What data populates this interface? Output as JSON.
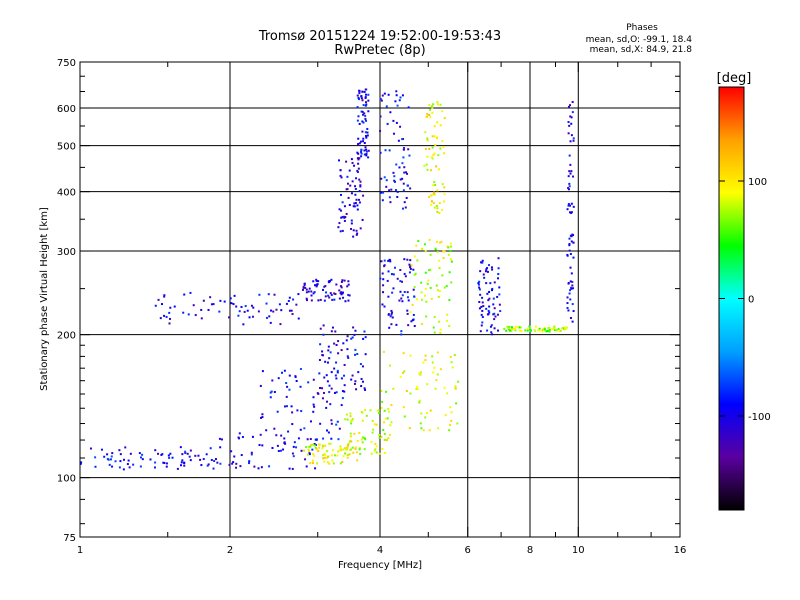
{
  "chart_data": {
    "type": "scatter",
    "title": "Tromsø 20151224 19:52:00-19:53:43",
    "subtitle": "RwPretec (8p)",
    "xlabel": "Frequency [MHz]",
    "ylabel": "Stationary phase Virtual Height [km]",
    "x_scale": "log",
    "y_scale": "log",
    "xlim": [
      1,
      16
    ],
    "ylim": [
      75,
      750
    ],
    "x_ticks": [
      "1",
      "2",
      "4",
      "6",
      "8",
      "10",
      "16"
    ],
    "y_ticks": [
      "75",
      "100",
      "200",
      "300",
      "400",
      "500",
      "600",
      "750"
    ],
    "grid": true,
    "legend": {
      "title": "Phases",
      "line1": "mean, sd,O: -99.1, 18.4",
      "line2": "mean, sd,X:  84.9, 21.8"
    },
    "colorbar": {
      "label": "[deg]",
      "range": [
        -180,
        180
      ],
      "ticks": [
        "100",
        "0",
        "-100"
      ],
      "colors": [
        "#000000",
        "#5a00a0",
        "#0000ff",
        "#00a0ff",
        "#00ffff",
        "#00ff00",
        "#ffff00",
        "#ffa000",
        "#ff0000"
      ]
    },
    "clusters": [
      {
        "x": [
          1.0,
          1.8
        ],
        "y": [
          104,
          116
        ],
        "phase": -95
      },
      {
        "x": [
          1.8,
          3.0
        ],
        "y": [
          104,
          125
        ],
        "phase": -100
      },
      {
        "x": [
          2.3,
          3.4
        ],
        "y": [
          120,
          170
        ],
        "phase": -95
      },
      {
        "x": [
          3.0,
          3.8
        ],
        "y": [
          150,
          215
        ],
        "phase": -100
      },
      {
        "x": [
          1.4,
          2.8
        ],
        "y": [
          210,
          245
        ],
        "phase": -100
      },
      {
        "x": [
          2.8,
          3.5
        ],
        "y": [
          235,
          262
        ],
        "phase": -105
      },
      {
        "x": [
          2.8,
          3.6
        ],
        "y": [
          107,
          118
        ],
        "phase": 90
      },
      {
        "x": [
          3.4,
          4.2
        ],
        "y": [
          112,
          140
        ],
        "phase": 85
      },
      {
        "x": [
          4.0,
          5.8
        ],
        "y": [
          125,
          185
        ],
        "phase": 88
      },
      {
        "x": [
          3.3,
          3.7
        ],
        "y": [
          320,
          470
        ],
        "phase": -105
      },
      {
        "x": [
          3.6,
          3.8
        ],
        "y": [
          470,
          660
        ],
        "phase": -100
      },
      {
        "x": [
          4.0,
          4.7
        ],
        "y": [
          200,
          290
        ],
        "phase": -100
      },
      {
        "x": [
          4.6,
          5.6
        ],
        "y": [
          200,
          320
        ],
        "phase": 80
      },
      {
        "x": [
          4.9,
          5.4
        ],
        "y": [
          360,
          620
        ],
        "phase": 95
      },
      {
        "x": [
          4.0,
          4.6
        ],
        "y": [
          360,
          660
        ],
        "phase": -95
      },
      {
        "x": [
          6.3,
          7.0
        ],
        "y": [
          200,
          290
        ],
        "phase": -100
      },
      {
        "x": [
          7.0,
          9.5
        ],
        "y": [
          203,
          208
        ],
        "phase": 70
      },
      {
        "x": [
          9.5,
          9.8
        ],
        "y": [
          210,
          620
        ],
        "phase": -100
      }
    ]
  }
}
